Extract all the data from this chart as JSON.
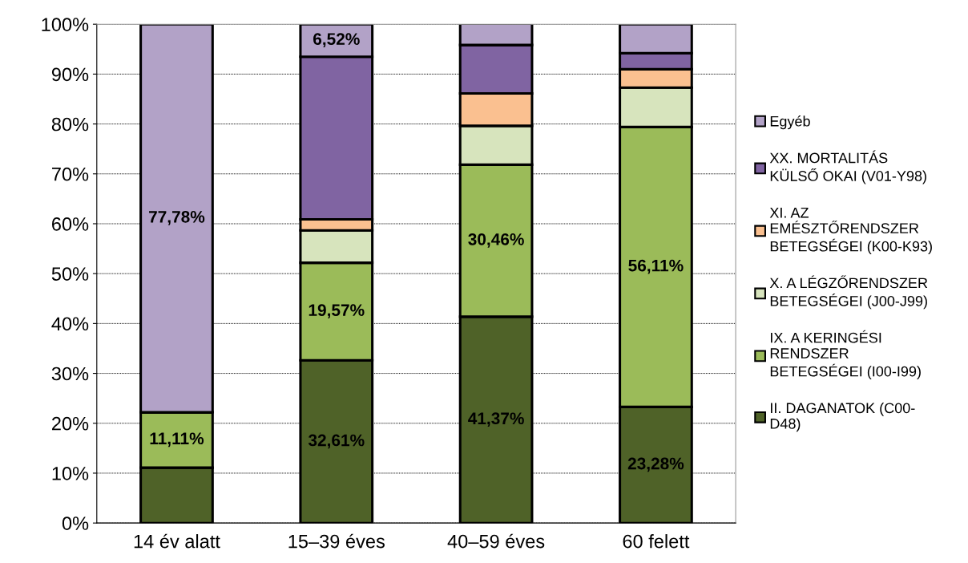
{
  "chart_data": {
    "type": "bar",
    "stacked": true,
    "categories": [
      "14 év alatt",
      "15–39 éves",
      "40–59 éves",
      "60 felett"
    ],
    "series": [
      {
        "name": "II. DAGANATOK (C00-\nD48)",
        "color": "#4f6228",
        "values": [
          11.1,
          32.61,
          41.37,
          23.28
        ],
        "value_labels": [
          null,
          "32,61%",
          "41,37%",
          "23,28%"
        ]
      },
      {
        "name": "IX. A KERINGÉSI\nRENDSZER\nBETEGSÉGEI (I00-I99)",
        "color": "#9bbb59",
        "values": [
          11.11,
          19.57,
          30.46,
          56.11
        ],
        "value_labels": [
          "11,11%",
          "19,57%",
          "30,46%",
          "56,11%"
        ]
      },
      {
        "name": "X. A LÉGZŐRENDSZER\nBETEGSÉGEI (J00-J99)",
        "color": "#d7e4bd",
        "values": [
          0,
          6.5,
          7.8,
          7.9
        ]
      },
      {
        "name": "XI. AZ\nEMÉSZTŐRENDSZER\nBETEGSÉGEI (K00-K93)",
        "color": "#fac090",
        "values": [
          0,
          2.2,
          6.5,
          3.7
        ]
      },
      {
        "name": "XX. MORTALITÁS\nKÜLSŐ OKAI (V01-Y98)",
        "color": "#8064a2",
        "values": [
          0,
          32.61,
          9.7,
          3.2
        ]
      },
      {
        "name": "Egyéb",
        "color": "#b2a2c7",
        "values": [
          77.78,
          6.52,
          4.3,
          5.8
        ],
        "value_labels": [
          "77,78%",
          "6,52%",
          null,
          null
        ]
      }
    ],
    "ylim": [
      0,
      100
    ],
    "yticks": [
      {
        "value": 0,
        "label": "0%"
      },
      {
        "value": 10,
        "label": "10%"
      },
      {
        "value": 20,
        "label": "20%"
      },
      {
        "value": 30,
        "label": "30%"
      },
      {
        "value": 40,
        "label": "40%"
      },
      {
        "value": 50,
        "label": "50%"
      },
      {
        "value": 60,
        "label": "60%"
      },
      {
        "value": 70,
        "label": "70%"
      },
      {
        "value": 80,
        "label": "80%"
      },
      {
        "value": 90,
        "label": "90%"
      },
      {
        "value": 100,
        "label": "100%"
      }
    ],
    "grid": "y",
    "legend": "right"
  }
}
